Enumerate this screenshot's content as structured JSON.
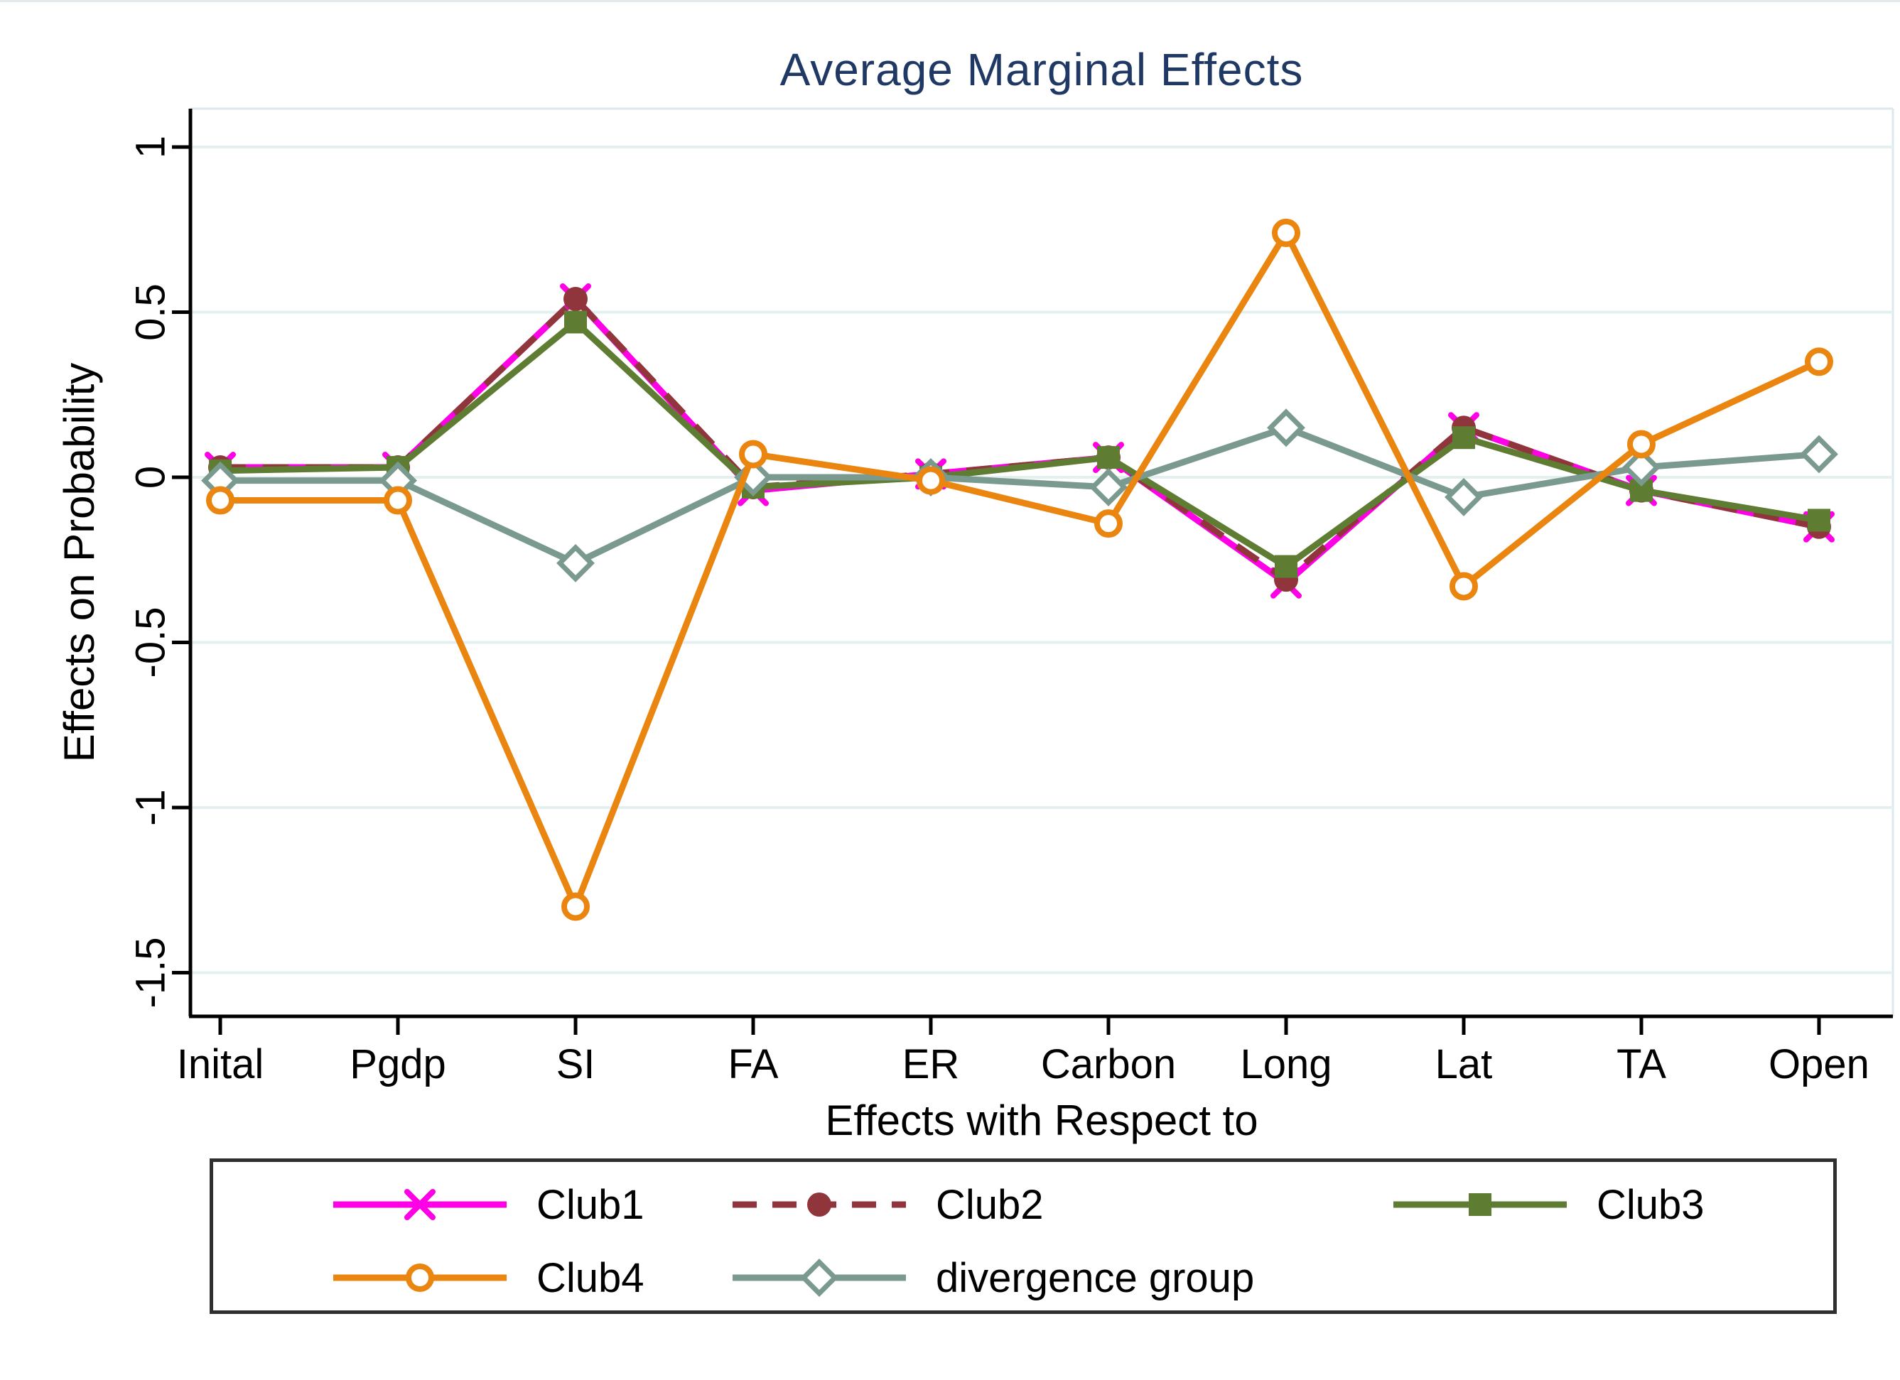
{
  "title": "Average Marginal Effects",
  "axes": {
    "y_label": "Effects on Probability",
    "x_label": "Effects with Respect to"
  },
  "chart_data": {
    "type": "line",
    "title": "Average Marginal Effects",
    "xlabel": "Effects with Respect to",
    "ylabel": "Effects on Probability",
    "categories": [
      "Inital",
      "Pgdp",
      "SI",
      "FA",
      "ER",
      "Carbon",
      "Long",
      "Lat",
      "TA",
      "Open"
    ],
    "yticks": [
      1,
      0.5,
      0,
      -0.5,
      -1,
      -1.5
    ],
    "ytick_labels": [
      "1",
      "0.5",
      "0",
      "-0.5",
      "-1",
      "-1.5"
    ],
    "ylim": [
      -1.65,
      1.1
    ],
    "grid": true,
    "legend_position": "bottom",
    "series": [
      {
        "name": "Club1",
        "color": "#FF00E6",
        "marker": "x",
        "line": "solid",
        "values": [
          0.03,
          0.03,
          0.54,
          -0.04,
          0.01,
          0.06,
          -0.32,
          0.15,
          -0.04,
          -0.15
        ]
      },
      {
        "name": "Club2",
        "color": "#90353B",
        "marker": "filled-circle",
        "line": "dashed",
        "values": [
          0.03,
          0.03,
          0.54,
          -0.03,
          0.01,
          0.06,
          -0.31,
          0.15,
          -0.04,
          -0.15
        ]
      },
      {
        "name": "Club3",
        "color": "#5E7C32",
        "marker": "filled-square",
        "line": "solid",
        "values": [
          0.02,
          0.03,
          0.47,
          -0.03,
          0.0,
          0.06,
          -0.27,
          0.12,
          -0.04,
          -0.13
        ]
      },
      {
        "name": "Club4",
        "color": "#EA860F",
        "marker": "open-circle",
        "line": "solid",
        "values": [
          -0.07,
          -0.07,
          -1.3,
          0.07,
          -0.01,
          -0.14,
          0.74,
          -0.33,
          0.1,
          0.35
        ]
      },
      {
        "name": "divergence group",
        "color": "#7B9A8F",
        "marker": "open-diamond",
        "line": "solid",
        "values": [
          -0.01,
          -0.01,
          -0.26,
          0.0,
          0.0,
          -0.03,
          0.15,
          -0.06,
          0.03,
          0.07
        ]
      }
    ],
    "style": {
      "grid_color": "#E4EFF0",
      "plot_border_color": "#DCE9EB",
      "axis_color": "#000000",
      "title_color": "#1F3864",
      "legend_border_color": "#2f2f2f"
    }
  }
}
